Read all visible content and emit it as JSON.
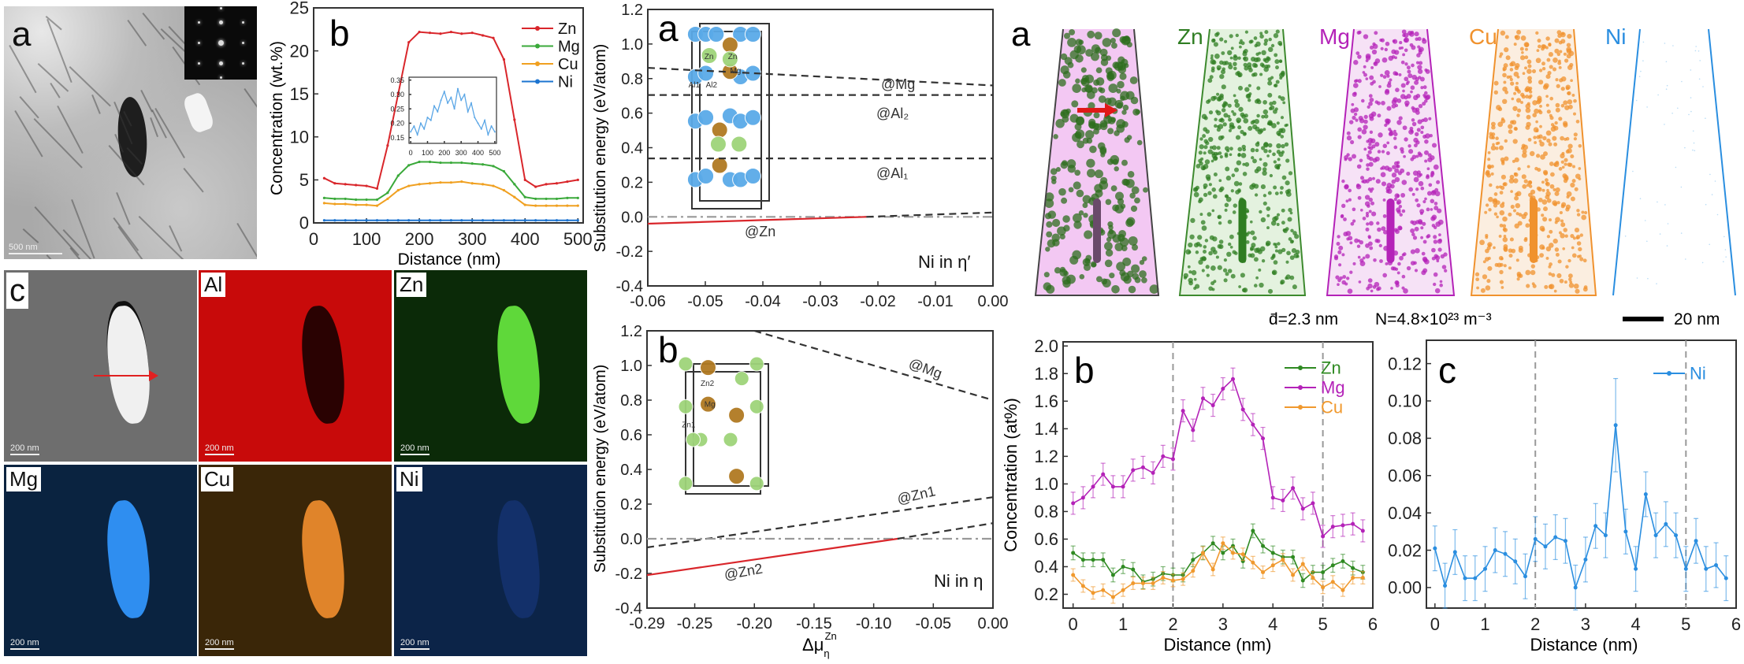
{
  "figure": {
    "tem": {
      "label": "a",
      "scale_bar": "500 nm"
    },
    "eds_maps": {
      "label": "c",
      "maps": [
        {
          "element": "",
          "scale_bar": "200 nm",
          "bg": "#6e6e6e",
          "prec": "#f0f0f0"
        },
        {
          "element": "Al",
          "scale_bar": "200 nm",
          "bg": "#c80a0a",
          "prec": "#2a0202"
        },
        {
          "element": "Zn",
          "scale_bar": "200 nm",
          "bg": "#0b2a08",
          "prec": "#5fd83a"
        },
        {
          "element": "Mg",
          "scale_bar": "200 nm",
          "bg": "#0a2340",
          "prec": "#2f8ef0"
        },
        {
          "element": "Cu",
          "scale_bar": "200 nm",
          "bg": "#3a2608",
          "prec": "#e0842a"
        },
        {
          "element": "Ni",
          "scale_bar": "200 nm",
          "bg": "#0c2448",
          "prec": "#13306a"
        }
      ]
    },
    "dft": {
      "a": {
        "label": "a",
        "ylabel": "Substitution energy (eV/atom)",
        "note": "Ni in η′",
        "line_labels": {
          "mg": "@Mg",
          "al2": "@Al₂",
          "al1": "@Al₁",
          "zn": "@Zn"
        },
        "atom_labels": [
          "Zn",
          "Zn",
          "Mg",
          "Al1",
          "Al2"
        ]
      },
      "b": {
        "label": "b",
        "ylabel": "Substitution energy (eV/atom)",
        "note": "Ni in η",
        "xlabel_main": "Δμ",
        "xlabel_sub": "η",
        "xlabel_sup": "Zn",
        "line_labels": {
          "mg": "@Mg",
          "zn1": "@Zn1",
          "zn2": "@Zn2"
        },
        "atom_labels": [
          "Zn2",
          "Zn1",
          "Mg"
        ]
      }
    },
    "apt": {
      "label": "a",
      "columns": [
        "",
        "Zn",
        "Mg",
        "Cu",
        "Ni"
      ],
      "mean_diameter": "d̄=2.3 nm",
      "number_density": "N=4.8×10²³ m⁻³",
      "scale_bar": "20 nm"
    },
    "colors": {
      "zn_tem": "#d9262b",
      "mg_tem": "#3aa93a",
      "cu_tem": "#f0a020",
      "ni_tem": "#1c74d0",
      "zn_apt": "#2f7d22",
      "mg_apt": "#b422b8",
      "cu_apt": "#f0922e",
      "ni_apt": "#2a8ee0"
    }
  },
  "chart_data": [
    {
      "id": "tem_profile",
      "type": "line",
      "panel_label": "b",
      "xlabel": "Distance (nm)",
      "ylabel": "Concentration (wt.%)",
      "xlim": [
        0,
        510
      ],
      "ylim": [
        0,
        25
      ],
      "xticks": [
        "0",
        "100",
        "200",
        "300",
        "400",
        "500"
      ],
      "xtick_values": [
        0,
        100,
        200,
        300,
        400,
        500
      ],
      "yticks": [
        "0",
        "5",
        "10",
        "15",
        "20",
        "25"
      ],
      "ytick_values": [
        0,
        5,
        10,
        15,
        20,
        25
      ],
      "legend": "top-right",
      "x": [
        20,
        40,
        60,
        80,
        100,
        120,
        140,
        160,
        180,
        200,
        220,
        240,
        260,
        280,
        300,
        320,
        340,
        360,
        380,
        400,
        420,
        440,
        460,
        480,
        500
      ],
      "series": [
        {
          "name": "Zn",
          "color": "#d9262b",
          "values": [
            5.2,
            4.6,
            4.5,
            4.4,
            4.3,
            4.0,
            9,
            15,
            21,
            22.2,
            22.1,
            22,
            22.2,
            22,
            22.1,
            21.8,
            21.5,
            19,
            12,
            5,
            4.2,
            4.5,
            4.6,
            4.8,
            5.0
          ]
        },
        {
          "name": "Mg",
          "color": "#3aa93a",
          "values": [
            2.9,
            2.8,
            2.8,
            2.7,
            2.7,
            2.7,
            3.5,
            5.5,
            6.7,
            7.1,
            7.1,
            7.0,
            7.0,
            7.0,
            6.9,
            6.8,
            6.6,
            6.0,
            4.5,
            3.0,
            2.8,
            2.8,
            2.8,
            2.9,
            2.9
          ]
        },
        {
          "name": "Cu",
          "color": "#f0a020",
          "values": [
            2.3,
            2.2,
            2.2,
            2.1,
            2.1,
            2.0,
            2.8,
            3.8,
            4.3,
            4.5,
            4.6,
            4.7,
            4.7,
            4.8,
            4.6,
            4.5,
            4.3,
            3.8,
            3.0,
            2.1,
            2.0,
            2.0,
            2.0,
            2.0,
            2.0
          ]
        },
        {
          "name": "Ni",
          "color": "#1c74d0",
          "values": [
            0.3,
            0.3,
            0.3,
            0.3,
            0.3,
            0.3,
            0.3,
            0.3,
            0.3,
            0.3,
            0.3,
            0.3,
            0.3,
            0.3,
            0.3,
            0.3,
            0.3,
            0.3,
            0.3,
            0.3,
            0.3,
            0.3,
            0.3,
            0.3,
            0.3
          ]
        }
      ]
    },
    {
      "id": "tem_inset",
      "type": "line",
      "xlim": [
        -10,
        510
      ],
      "ylim": [
        0.13,
        0.36
      ],
      "xticks": [
        "0",
        "100",
        "200",
        "300",
        "400",
        "500"
      ],
      "xtick_values": [
        0,
        100,
        200,
        300,
        400,
        500
      ],
      "yticks": [
        "0.15",
        "0.20",
        "0.25",
        "0.30",
        "0.35"
      ],
      "ytick_values": [
        0.15,
        0.2,
        0.25,
        0.3,
        0.35
      ],
      "x": [
        0,
        20,
        40,
        60,
        80,
        100,
        120,
        140,
        160,
        180,
        200,
        220,
        240,
        260,
        280,
        300,
        320,
        340,
        360,
        380,
        400,
        420,
        440,
        460,
        480,
        500
      ],
      "series": [
        {
          "color": "#5aa6e6",
          "values": [
            0.17,
            0.19,
            0.16,
            0.2,
            0.18,
            0.22,
            0.21,
            0.26,
            0.24,
            0.28,
            0.31,
            0.27,
            0.29,
            0.25,
            0.32,
            0.28,
            0.3,
            0.24,
            0.27,
            0.22,
            0.2,
            0.18,
            0.21,
            0.16,
            0.19,
            0.17
          ]
        }
      ]
    },
    {
      "id": "dft_a",
      "type": "line",
      "panel_label": "a",
      "xlabel": "",
      "ylabel": "Substitution energy (eV/atom)",
      "xlim": [
        -0.06,
        0
      ],
      "ylim": [
        -0.4,
        1.2
      ],
      "xticks": [
        "-0.06",
        "-0.05",
        "-0.04",
        "-0.03",
        "-0.02",
        "-0.01",
        "0.00"
      ],
      "xtick_values": [
        -0.06,
        -0.05,
        -0.04,
        -0.03,
        -0.02,
        -0.01,
        0
      ],
      "yticks": [
        "-0.4",
        "-0.2",
        "0.0",
        "0.2",
        "0.4",
        "0.6",
        "0.8",
        "1.0",
        "1.2"
      ],
      "ytick_values": [
        -0.4,
        -0.2,
        0,
        0.2,
        0.4,
        0.6,
        0.8,
        1.0,
        1.2
      ],
      "series": [
        {
          "name": "@Mg",
          "style": "dashed",
          "color": "#333333",
          "x": [
            -0.06,
            0
          ],
          "values": [
            0.862,
            0.76
          ]
        },
        {
          "name": "@Al₂",
          "style": "dashed",
          "color": "#333333",
          "x": [
            -0.06,
            0
          ],
          "values": [
            0.705,
            0.705
          ]
        },
        {
          "name": "@Al₁",
          "style": "dashed",
          "color": "#333333",
          "x": [
            -0.06,
            0
          ],
          "values": [
            0.338,
            0.338
          ]
        },
        {
          "name": "reference",
          "style": "dashdot",
          "color": "#999999",
          "x": [
            -0.06,
            0
          ],
          "values": [
            0,
            0
          ]
        },
        {
          "name": "@Zn",
          "style": "solid",
          "color": "#d9262b",
          "x": [
            -0.06,
            -0.022
          ],
          "values": [
            -0.04,
            0
          ]
        },
        {
          "name": "@Zn",
          "style": "dashed",
          "color": "#333333",
          "x": [
            -0.022,
            0
          ],
          "values": [
            0,
            0.025
          ]
        }
      ]
    },
    {
      "id": "dft_b",
      "type": "line",
      "panel_label": "b",
      "xlabel": "Δμ_η^Zn",
      "ylabel": "Substitution energy (eV/atom)",
      "xlim": [
        -0.29,
        0
      ],
      "ylim": [
        -0.4,
        1.2
      ],
      "xticks": [
        "-0.29",
        "-0.25",
        "-0.20",
        "-0.15",
        "-0.10",
        "-0.05",
        "0.00"
      ],
      "xtick_values": [
        -0.29,
        -0.25,
        -0.2,
        -0.15,
        -0.1,
        -0.05,
        0
      ],
      "yticks": [
        "-0.4",
        "-0.2",
        "0.0",
        "0.2",
        "0.4",
        "0.6",
        "0.8",
        "1.0",
        "1.2"
      ],
      "ytick_values": [
        -0.4,
        -0.2,
        0,
        0.2,
        0.4,
        0.6,
        0.8,
        1.0,
        1.2
      ],
      "series": [
        {
          "name": "@Mg",
          "style": "dashed",
          "color": "#333333",
          "x": [
            -0.2,
            0
          ],
          "values": [
            1.2,
            0.8
          ]
        },
        {
          "name": "@Zn1",
          "style": "dashed",
          "color": "#333333",
          "x": [
            -0.29,
            0
          ],
          "values": [
            -0.05,
            0.24
          ]
        },
        {
          "name": "reference",
          "style": "dashdot",
          "color": "#999999",
          "x": [
            -0.29,
            0
          ],
          "values": [
            0,
            0
          ]
        },
        {
          "name": "@Zn2",
          "style": "solid",
          "color": "#d9262b",
          "x": [
            -0.29,
            -0.08
          ],
          "values": [
            -0.21,
            0
          ]
        },
        {
          "name": "@Zn2",
          "style": "dashed",
          "color": "#333333",
          "x": [
            -0.08,
            0
          ],
          "values": [
            0,
            0.09
          ]
        }
      ]
    },
    {
      "id": "apt_b",
      "type": "line",
      "panel_label": "b",
      "xlabel": "Distance (nm)",
      "ylabel": "Concentration (at%)",
      "xlim": [
        -0.2,
        6
      ],
      "ylim": [
        0.1,
        2.03
      ],
      "xticks": [
        "0",
        "1",
        "2",
        "3",
        "4",
        "5",
        "6"
      ],
      "xtick_values": [
        0,
        1,
        2,
        3,
        4,
        5,
        6
      ],
      "yticks": [
        "0.2",
        "0.4",
        "0.6",
        "0.8",
        "1.0",
        "1.2",
        "1.4",
        "1.6",
        "1.8",
        "2.0"
      ],
      "ytick_values": [
        0.2,
        0.4,
        0.6,
        0.8,
        1.0,
        1.2,
        1.4,
        1.6,
        1.8,
        2.0
      ],
      "vlines": [
        2,
        5
      ],
      "legend": "top-right",
      "x": [
        0,
        0.2,
        0.4,
        0.6,
        0.8,
        1.0,
        1.2,
        1.4,
        1.6,
        1.8,
        2.0,
        2.2,
        2.4,
        2.6,
        2.8,
        3.0,
        3.2,
        3.4,
        3.6,
        3.8,
        4.0,
        4.2,
        4.4,
        4.6,
        4.8,
        5.0,
        5.2,
        5.4,
        5.6,
        5.8
      ],
      "series": [
        {
          "name": "Zn",
          "color": "#2f8a22",
          "error": 0.05,
          "values": [
            0.5,
            0.45,
            0.45,
            0.45,
            0.34,
            0.4,
            0.38,
            0.29,
            0.31,
            0.35,
            0.34,
            0.34,
            0.45,
            0.5,
            0.57,
            0.5,
            0.55,
            0.44,
            0.66,
            0.55,
            0.5,
            0.47,
            0.47,
            0.3,
            0.36,
            0.36,
            0.41,
            0.44,
            0.39,
            0.36
          ]
        },
        {
          "name": "Mg",
          "color": "#b422b8",
          "error": 0.08,
          "values": [
            0.86,
            0.9,
            0.98,
            1.07,
            0.98,
            0.98,
            1.1,
            1.12,
            1.08,
            1.2,
            1.18,
            1.53,
            1.39,
            1.62,
            1.57,
            1.69,
            1.76,
            1.54,
            1.43,
            1.33,
            0.9,
            0.88,
            0.97,
            0.82,
            0.86,
            0.62,
            0.69,
            0.7,
            0.71,
            0.66
          ]
        },
        {
          "name": "Cu",
          "color": "#f0992e",
          "error": 0.045,
          "values": [
            0.34,
            0.26,
            0.21,
            0.23,
            0.18,
            0.23,
            0.28,
            0.28,
            0.28,
            0.32,
            0.3,
            0.31,
            0.37,
            0.5,
            0.38,
            0.57,
            0.5,
            0.49,
            0.43,
            0.36,
            0.41,
            0.45,
            0.34,
            0.42,
            0.32,
            0.25,
            0.29,
            0.23,
            0.32,
            0.32
          ]
        }
      ]
    },
    {
      "id": "apt_c",
      "type": "line",
      "panel_label": "c",
      "xlabel": "Distance (nm)",
      "ylabel": "",
      "xlim": [
        -0.17,
        6
      ],
      "ylim": [
        -0.011,
        0.1325
      ],
      "xticks": [
        "0",
        "1",
        "2",
        "3",
        "4",
        "5",
        "6"
      ],
      "xtick_values": [
        0,
        1,
        2,
        3,
        4,
        5,
        6
      ],
      "yticks": [
        "0.00",
        "0.02",
        "0.04",
        "0.06",
        "0.08",
        "0.10",
        "0.12"
      ],
      "ytick_values": [
        0,
        0.02,
        0.04,
        0.06,
        0.08,
        0.1,
        0.12
      ],
      "vlines": [
        2,
        5
      ],
      "legend": "top-right",
      "x": [
        0,
        0.2,
        0.4,
        0.6,
        0.8,
        1.0,
        1.2,
        1.4,
        1.6,
        1.8,
        2.0,
        2.2,
        2.4,
        2.6,
        2.8,
        3.0,
        3.2,
        3.4,
        3.6,
        3.8,
        4.0,
        4.2,
        4.4,
        4.6,
        4.8,
        5.0,
        5.2,
        5.4,
        5.6,
        5.8
      ],
      "series": [
        {
          "name": "Ni",
          "color": "#2a8ee0",
          "error": 0.012,
          "values": [
            0.021,
            0.001,
            0.019,
            0.005,
            0.005,
            0.01,
            0.02,
            0.018,
            0.014,
            0.006,
            0.026,
            0.022,
            0.027,
            0.025,
            0.0,
            0.015,
            0.033,
            0.028,
            0.087,
            0.03,
            0.01,
            0.05,
            0.028,
            0.034,
            0.028,
            0.01,
            0.025,
            0.01,
            0.012,
            0.005
          ]
        }
      ]
    }
  ]
}
